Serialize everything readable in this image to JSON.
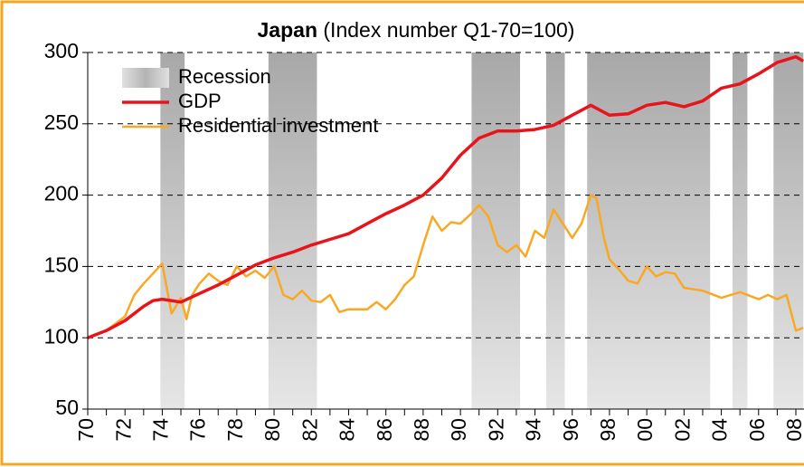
{
  "chart_data": {
    "type": "line",
    "title": "Japan",
    "subtitle": "(Index number Q1-70=100)",
    "xlim": [
      1970,
      2008.4
    ],
    "ylim": [
      50,
      300
    ],
    "yticks": [
      50,
      100,
      150,
      200,
      250,
      300
    ],
    "xticks": [
      {
        "value": 1970,
        "label": "70"
      },
      {
        "value": 1972,
        "label": "72"
      },
      {
        "value": 1974,
        "label": "74"
      },
      {
        "value": 1976,
        "label": "76"
      },
      {
        "value": 1978,
        "label": "78"
      },
      {
        "value": 1980,
        "label": "80"
      },
      {
        "value": 1982,
        "label": "82"
      },
      {
        "value": 1984,
        "label": "84"
      },
      {
        "value": 1986,
        "label": "86"
      },
      {
        "value": 1988,
        "label": "88"
      },
      {
        "value": 1990,
        "label": "90"
      },
      {
        "value": 1992,
        "label": "92"
      },
      {
        "value": 1994,
        "label": "94"
      },
      {
        "value": 1996,
        "label": "96"
      },
      {
        "value": 1998,
        "label": "98"
      },
      {
        "value": 2000,
        "label": "00"
      },
      {
        "value": 2002,
        "label": "02"
      },
      {
        "value": 2004,
        "label": "04"
      },
      {
        "value": 2006,
        "label": "06"
      },
      {
        "value": 2008,
        "label": "08"
      }
    ],
    "grid": true,
    "legend": "upper left",
    "bands": {
      "name": "Recession",
      "color": "#a8a8a8",
      "ranges": [
        [
          1973.9,
          1975.2
        ],
        [
          1979.7,
          1982.3
        ],
        [
          1990.6,
          1993.2
        ],
        [
          1994.6,
          1995.6
        ],
        [
          1996.8,
          2003.4
        ],
        [
          2004.6,
          2005.4
        ],
        [
          2006.8,
          2008.4
        ]
      ]
    },
    "series": [
      {
        "name": "GDP",
        "color": "#e8141b",
        "x": [
          1970,
          1971,
          1972,
          1973,
          1973.5,
          1974,
          1975,
          1976,
          1977,
          1978,
          1979,
          1980,
          1981,
          1982,
          1983,
          1984,
          1985,
          1986,
          1987,
          1988,
          1989,
          1990,
          1991,
          1992,
          1993,
          1994,
          1995,
          1996,
          1997,
          1998,
          1999,
          2000,
          2001,
          2002,
          2003,
          2004,
          2005,
          2006,
          2007,
          2008,
          2008.4
        ],
        "values": [
          100,
          105,
          112,
          122,
          126,
          127,
          125,
          131,
          137,
          144,
          151,
          156,
          160,
          165,
          169,
          173,
          180,
          187,
          193,
          200,
          212,
          228,
          240,
          245,
          245,
          246,
          249,
          256,
          263,
          256,
          257,
          263,
          265,
          262,
          266,
          275,
          278,
          285,
          293,
          297,
          294
        ]
      },
      {
        "name": "Residential investment",
        "color": "#f9a824",
        "x": [
          1970,
          1971,
          1972,
          1972.5,
          1973,
          1973.5,
          1974,
          1974.5,
          1975,
          1975.3,
          1975.6,
          1976,
          1976.5,
          1977,
          1977.5,
          1978,
          1978.5,
          1979,
          1979.5,
          1980,
          1980.5,
          1981,
          1981.5,
          1982,
          1982.5,
          1983,
          1983.5,
          1984,
          1985,
          1985.5,
          1986,
          1986.5,
          1987,
          1987.5,
          1988,
          1988.5,
          1989,
          1989.5,
          1990,
          1990.5,
          1991,
          1991.5,
          1992,
          1992.5,
          1993,
          1993.5,
          1994,
          1994.5,
          1995,
          1995.5,
          1996,
          1996.5,
          1997,
          1997.3,
          1997.7,
          1998,
          1998.5,
          1999,
          1999.5,
          2000,
          2000.5,
          2001,
          2001.5,
          2002,
          2003,
          2004,
          2005,
          2006,
          2006.5,
          2007,
          2007.5,
          2008,
          2008.4
        ],
        "values": [
          100,
          105,
          115,
          130,
          138,
          145,
          152,
          117,
          128,
          113,
          130,
          138,
          145,
          140,
          137,
          150,
          143,
          147,
          142,
          150,
          130,
          127,
          133,
          126,
          125,
          130,
          118,
          120,
          120,
          125,
          120,
          127,
          137,
          143,
          165,
          185,
          175,
          181,
          180,
          186,
          193,
          185,
          165,
          160,
          165,
          157,
          175,
          170,
          190,
          180,
          170,
          180,
          200,
          198,
          170,
          155,
          148,
          140,
          138,
          150,
          143,
          146,
          145,
          135,
          133,
          128,
          132,
          127,
          130,
          127,
          130,
          105,
          107
        ]
      }
    ]
  }
}
